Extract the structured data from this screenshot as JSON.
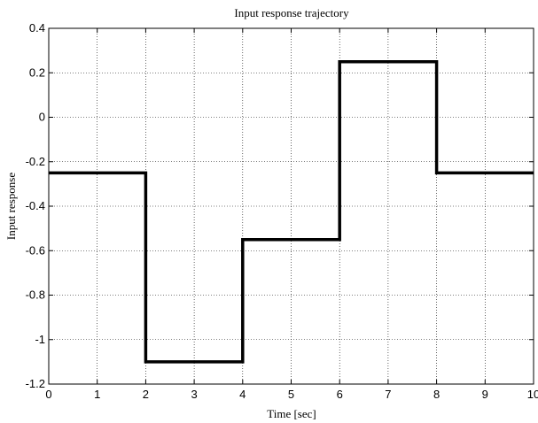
{
  "chart_data": {
    "type": "line",
    "title": "Input response trajectory",
    "xlabel": "Time [sec]",
    "ylabel": "Input response",
    "xlim": [
      0,
      10
    ],
    "ylim": [
      -1.2,
      0.4
    ],
    "xticks": [
      0,
      1,
      2,
      3,
      4,
      5,
      6,
      7,
      8,
      9,
      10
    ],
    "yticks": [
      0.4,
      0.2,
      0,
      -0.2,
      -0.4,
      -0.6,
      -0.8,
      -1,
      -1.2
    ],
    "xtick_labels": [
      "0",
      "1",
      "2",
      "3",
      "4",
      "5",
      "6",
      "7",
      "8",
      "9",
      "10"
    ],
    "ytick_labels": [
      "0.4",
      "0.2",
      "0",
      "-0.2",
      "-0.4",
      "-0.6",
      "-0.8",
      "-1",
      "-1.2"
    ],
    "grid": true,
    "line_style": "dotted grid, solid thick black series",
    "series": [
      {
        "color": "#000000",
        "step": "post",
        "x": [
          0,
          2,
          4,
          6,
          8,
          10
        ],
        "y": [
          -0.25,
          -1.1,
          -0.55,
          0.25,
          -0.25,
          -0.25
        ]
      }
    ]
  }
}
